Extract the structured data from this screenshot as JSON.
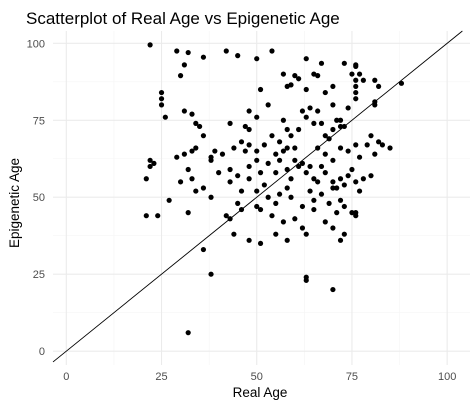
{
  "chart_data": {
    "type": "scatter",
    "title": "Scatterplot of Real Age vs Epigenetic Age",
    "xlabel": "Real Age",
    "ylabel": "Epigenetic Age",
    "xlim": [
      -3.5,
      106
    ],
    "ylim": [
      -4.5,
      104
    ],
    "x_ticks": [
      0,
      25,
      50,
      75,
      100
    ],
    "y_ticks": [
      0,
      25,
      50,
      75,
      100
    ],
    "x_tick_labels": [
      "0",
      "25",
      "50",
      "75",
      "100"
    ],
    "y_tick_labels": [
      "0",
      "25",
      "50",
      "75",
      "100"
    ],
    "grid": true,
    "legend": "none",
    "reference_line": {
      "type": "identity",
      "slope": 1,
      "intercept": 0
    },
    "colors": {
      "points": "#000000",
      "major_grid": "#ebebeb",
      "minor_grid": "#f5f5f5",
      "line": "#000000",
      "background": "#ffffff"
    },
    "points": [
      [
        22,
        99.5
      ],
      [
        29,
        97.5
      ],
      [
        32,
        97
      ],
      [
        36,
        95.5
      ],
      [
        42,
        97.5
      ],
      [
        45,
        96
      ],
      [
        54,
        97.5
      ],
      [
        50,
        95
      ],
      [
        57,
        90
      ],
      [
        30,
        89.5
      ],
      [
        31,
        93
      ],
      [
        25,
        84
      ],
      [
        25,
        82
      ],
      [
        25,
        80
      ],
      [
        58,
        86
      ],
      [
        59,
        86.5
      ],
      [
        60,
        89.5
      ],
      [
        61,
        88.5
      ],
      [
        63,
        85
      ],
      [
        65,
        90
      ],
      [
        63,
        95
      ],
      [
        67,
        93.5
      ],
      [
        66,
        89.5
      ],
      [
        68,
        84
      ],
      [
        70,
        86
      ],
      [
        70,
        80
      ],
      [
        73,
        93.5
      ],
      [
        76,
        93
      ],
      [
        75,
        90
      ],
      [
        76,
        88
      ],
      [
        76,
        86
      ],
      [
        77,
        90
      ],
      [
        78,
        88
      ],
      [
        81,
        88
      ],
      [
        82,
        86
      ],
      [
        88,
        87
      ],
      [
        76,
        92.5
      ],
      [
        76,
        84
      ],
      [
        76,
        82
      ],
      [
        74,
        79
      ],
      [
        72,
        75
      ],
      [
        73,
        73
      ],
      [
        81,
        80
      ],
      [
        81,
        81
      ],
      [
        26,
        76
      ],
      [
        31,
        78
      ],
      [
        33,
        77
      ],
      [
        34,
        74
      ],
      [
        35,
        73
      ],
      [
        36,
        70
      ],
      [
        43,
        74
      ],
      [
        47,
        73
      ],
      [
        48,
        72
      ],
      [
        48,
        78
      ],
      [
        50,
        76
      ],
      [
        51,
        85
      ],
      [
        53,
        80
      ],
      [
        54,
        70
      ],
      [
        56,
        68
      ],
      [
        57,
        75
      ],
      [
        58,
        72
      ],
      [
        59,
        70
      ],
      [
        60,
        66
      ],
      [
        61,
        72
      ],
      [
        62,
        78
      ],
      [
        63,
        76
      ],
      [
        64,
        79
      ],
      [
        65,
        74
      ],
      [
        66,
        78
      ],
      [
        67,
        74
      ],
      [
        68,
        70
      ],
      [
        69,
        69
      ],
      [
        70,
        72
      ],
      [
        71,
        75
      ],
      [
        72,
        73
      ],
      [
        38,
        63
      ],
      [
        39,
        65
      ],
      [
        41,
        64
      ],
      [
        44,
        66
      ],
      [
        46,
        68
      ],
      [
        47,
        65
      ],
      [
        48,
        67
      ],
      [
        50,
        65
      ],
      [
        52,
        67
      ],
      [
        55,
        64
      ],
      [
        57,
        65
      ],
      [
        58,
        66
      ],
      [
        60,
        62
      ],
      [
        62,
        61
      ],
      [
        64,
        60
      ],
      [
        66,
        66
      ],
      [
        68,
        64
      ],
      [
        70,
        62
      ],
      [
        72,
        66
      ],
      [
        74,
        65
      ],
      [
        76,
        67
      ],
      [
        77,
        63
      ],
      [
        79,
        67
      ],
      [
        80,
        70
      ],
      [
        81,
        64
      ],
      [
        82,
        68
      ],
      [
        83,
        67
      ],
      [
        85,
        66
      ],
      [
        29,
        63
      ],
      [
        31,
        64
      ],
      [
        33,
        65
      ],
      [
        34,
        66
      ],
      [
        38,
        62
      ],
      [
        40,
        58
      ],
      [
        43,
        59
      ],
      [
        45,
        57
      ],
      [
        48,
        60
      ],
      [
        50,
        62
      ],
      [
        51,
        58
      ],
      [
        53,
        61
      ],
      [
        55,
        58
      ],
      [
        56,
        62
      ],
      [
        58,
        59
      ],
      [
        59,
        56
      ],
      [
        61,
        60
      ],
      [
        63,
        58
      ],
      [
        65,
        56
      ],
      [
        66,
        55
      ],
      [
        67,
        60
      ],
      [
        68,
        58
      ],
      [
        70,
        55
      ],
      [
        71,
        53
      ],
      [
        72,
        56
      ],
      [
        73,
        54
      ],
      [
        74,
        57
      ],
      [
        75,
        59
      ],
      [
        76,
        55
      ],
      [
        77,
        52
      ],
      [
        78,
        56
      ],
      [
        80,
        57
      ],
      [
        22,
        60
      ],
      [
        22,
        62
      ],
      [
        23,
        61
      ],
      [
        21,
        56
      ],
      [
        27,
        49
      ],
      [
        30,
        55
      ],
      [
        32,
        59
      ],
      [
        33,
        56
      ],
      [
        34,
        52
      ],
      [
        36,
        53
      ],
      [
        38,
        50
      ],
      [
        43,
        55
      ],
      [
        46,
        52
      ],
      [
        48,
        56
      ],
      [
        50,
        52
      ],
      [
        52,
        54
      ],
      [
        53,
        50
      ],
      [
        55,
        48
      ],
      [
        56,
        51
      ],
      [
        58,
        53
      ],
      [
        59,
        50
      ],
      [
        62,
        47
      ],
      [
        64,
        52
      ],
      [
        65,
        49
      ],
      [
        67,
        51
      ],
      [
        69,
        48
      ],
      [
        70,
        53
      ],
      [
        71,
        45
      ],
      [
        72,
        49
      ],
      [
        73,
        47
      ],
      [
        76,
        45
      ],
      [
        76,
        44
      ],
      [
        21,
        44
      ],
      [
        24,
        44
      ],
      [
        32,
        45
      ],
      [
        42,
        44
      ],
      [
        43,
        43
      ],
      [
        45,
        48
      ],
      [
        46,
        46
      ],
      [
        50,
        47
      ],
      [
        51,
        46
      ],
      [
        54,
        44
      ],
      [
        57,
        42
      ],
      [
        60,
        43
      ],
      [
        62,
        40
      ],
      [
        63,
        38
      ],
      [
        65,
        46
      ],
      [
        68,
        42
      ],
      [
        70,
        40
      ],
      [
        72,
        36
      ],
      [
        73,
        38
      ],
      [
        75,
        45
      ],
      [
        44,
        38
      ],
      [
        48,
        36
      ],
      [
        51,
        35
      ],
      [
        55,
        38
      ],
      [
        58,
        36
      ],
      [
        36,
        33
      ],
      [
        38,
        25
      ],
      [
        63,
        24
      ],
      [
        63,
        23
      ],
      [
        70,
        20
      ],
      [
        32,
        6
      ]
    ]
  }
}
